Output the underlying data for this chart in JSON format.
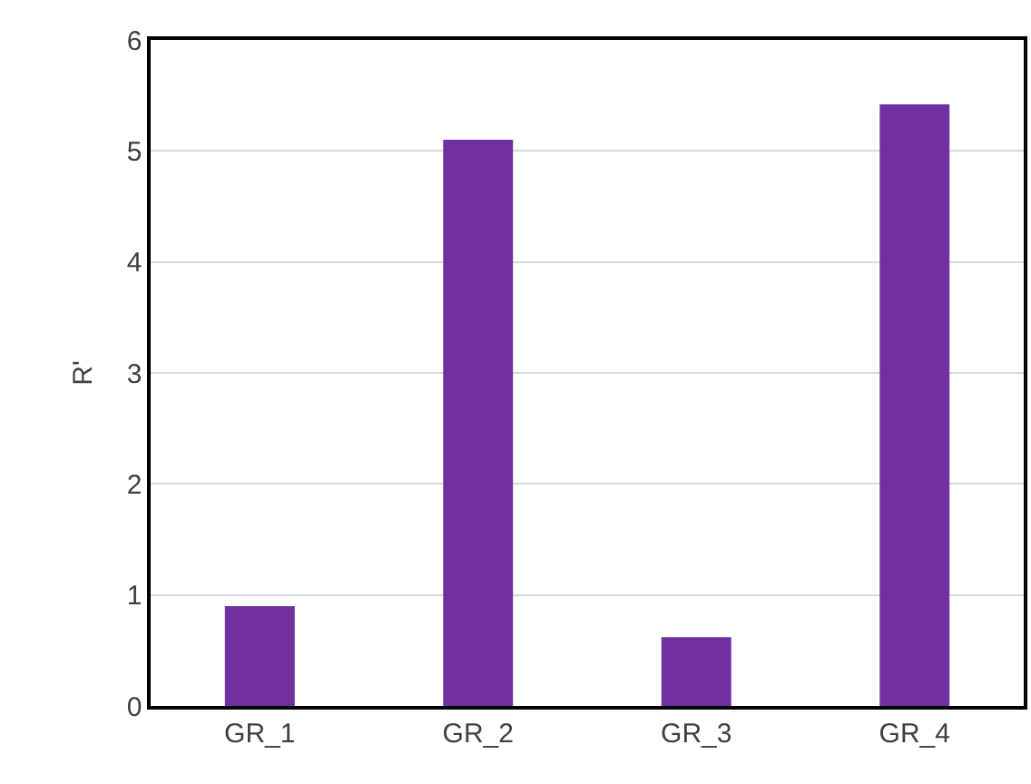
{
  "chart_data": {
    "type": "bar",
    "ylabel": "R'",
    "categories": [
      "GR_1",
      "GR_2",
      "GR_3",
      "GR_4"
    ],
    "values": [
      0.9,
      5.1,
      0.62,
      5.42
    ],
    "color": "#7030a0",
    "ylim": [
      0,
      6
    ],
    "yticks": [
      0,
      1,
      2,
      3,
      4,
      5,
      6
    ],
    "grid": "y"
  }
}
